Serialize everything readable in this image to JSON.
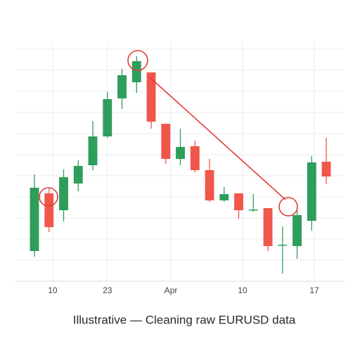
{
  "chart_data": {
    "type": "candlestick",
    "title": "Illustrative — Cleaning raw EURUSD data",
    "x": [
      0,
      1,
      2,
      3,
      4,
      5,
      6,
      7,
      8,
      9,
      10,
      11,
      12,
      13,
      14,
      15,
      16,
      17,
      18,
      19,
      20
    ],
    "open": [
      43,
      125,
      101,
      139,
      165,
      206,
      260,
      283,
      297,
      224,
      174,
      192,
      158,
      115,
      125,
      101,
      104,
      51,
      50,
      86,
      170
    ],
    "high": [
      152,
      132,
      159,
      172,
      228,
      269,
      302,
      320,
      297,
      224,
      217,
      200,
      174,
      134,
      125,
      124,
      104,
      78,
      100,
      178,
      204
    ],
    "low": [
      35,
      70,
      85,
      128,
      158,
      204,
      245,
      268,
      217,
      167,
      165,
      155,
      113,
      113,
      89,
      99,
      43,
      11,
      32,
      72,
      138
    ],
    "close": [
      133,
      77,
      148,
      164,
      206,
      259,
      293,
      313,
      227,
      174,
      191,
      158,
      115,
      124,
      101,
      102,
      50,
      52,
      94,
      169,
      149
    ],
    "up_color": "#2e9e5b",
    "down_color": "#f0564a",
    "xlim": [
      -1.3,
      21.25
    ],
    "xticks": [
      {
        "value": 1.25,
        "label": "10"
      },
      {
        "value": 5.0,
        "label": "23"
      },
      {
        "value": 9.35,
        "label": "Apr"
      },
      {
        "value": 14.26,
        "label": "10"
      },
      {
        "value": 19.18,
        "label": "17"
      }
    ],
    "ylim": [
      0,
      340
    ],
    "yticks": [
      30,
      60,
      90,
      120,
      150,
      180,
      210,
      240,
      270,
      300,
      330
    ],
    "grid": true
  }
}
